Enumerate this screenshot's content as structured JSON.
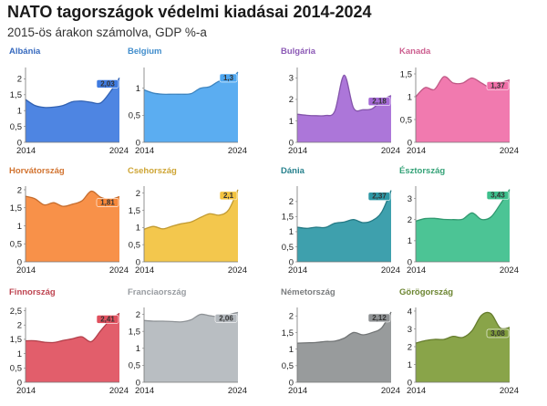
{
  "title": "NATO tagországok védelmi kiadásai 2014-2024",
  "subtitle": "2015-ös árakon számolva, GDP %-a",
  "chart_data": [
    {
      "type": "area",
      "title": "Albánia",
      "color": "#3f7be0",
      "x": [
        2014,
        2015,
        2016,
        2017,
        2018,
        2019,
        2020,
        2021,
        2022,
        2023,
        2024
      ],
      "values": [
        1.35,
        1.16,
        1.1,
        1.11,
        1.16,
        1.28,
        1.3,
        1.26,
        1.24,
        1.58,
        2.03
      ],
      "ylim": [
        0,
        2.3
      ],
      "yticks": [
        0,
        0.5,
        1,
        1.5,
        2
      ],
      "ytick_labels": [
        "0",
        "0,5",
        "1",
        "1,5",
        "2"
      ],
      "xtick_labels": [
        "2014",
        "2024"
      ],
      "last_label": "2,03"
    },
    {
      "type": "area",
      "title": "Belgium",
      "color": "#4da6f0",
      "x": [
        2014,
        2015,
        2016,
        2017,
        2018,
        2019,
        2020,
        2021,
        2022,
        2023,
        2024
      ],
      "values": [
        0.97,
        0.91,
        0.89,
        0.89,
        0.89,
        0.9,
        1.0,
        1.03,
        1.13,
        1.14,
        1.3
      ],
      "ylim": [
        0,
        1.35
      ],
      "yticks": [
        0,
        0.5,
        1
      ],
      "ytick_labels": [
        "0",
        "0,5",
        "1"
      ],
      "xtick_labels": [
        "2014",
        "2024"
      ],
      "last_label": "1,3"
    },
    {
      "type": "area",
      "title": "Bulgária",
      "color": "#a56ad6",
      "x": [
        2014,
        2015,
        2016,
        2017,
        2018,
        2019,
        2020,
        2021,
        2022,
        2023,
        2024
      ],
      "values": [
        1.31,
        1.26,
        1.24,
        1.25,
        1.45,
        3.13,
        1.6,
        1.52,
        1.57,
        1.96,
        2.18
      ],
      "ylim": [
        0,
        3.4
      ],
      "yticks": [
        0,
        1,
        2,
        3
      ],
      "ytick_labels": [
        "0",
        "1",
        "2",
        "3"
      ],
      "xtick_labels": [
        "2014",
        "2024"
      ],
      "last_label": "2,18"
    },
    {
      "type": "area",
      "title": "Kanada",
      "color": "#f06fa8",
      "x": [
        2014,
        2015,
        2016,
        2017,
        2018,
        2019,
        2020,
        2021,
        2022,
        2023,
        2024
      ],
      "values": [
        1.0,
        1.2,
        1.16,
        1.44,
        1.3,
        1.3,
        1.41,
        1.3,
        1.2,
        1.3,
        1.37
      ],
      "ylim": [
        0,
        1.6
      ],
      "yticks": [
        0,
        0.5,
        1,
        1.5
      ],
      "ytick_labels": [
        "0",
        "0,5",
        "1",
        "1,5"
      ],
      "xtick_labels": [
        "2014",
        "2024"
      ],
      "last_label": "1,37"
    },
    {
      "type": "area",
      "title": "Horvátország",
      "color": "#f7883a",
      "x": [
        2014,
        2015,
        2016,
        2017,
        2018,
        2019,
        2020,
        2021,
        2022,
        2023,
        2024
      ],
      "values": [
        1.82,
        1.75,
        1.58,
        1.64,
        1.54,
        1.6,
        1.69,
        1.96,
        1.79,
        1.73,
        1.81
      ],
      "ylim": [
        0,
        2.05
      ],
      "yticks": [
        0,
        0.5,
        1,
        1.5,
        2
      ],
      "ytick_labels": [
        "0",
        "0,5",
        "1",
        "1,5",
        "2"
      ],
      "xtick_labels": [
        "2014",
        "2024"
      ],
      "last_label": "1,81"
    },
    {
      "type": "area",
      "title": "Csehország",
      "color": "#f2c23e",
      "x": [
        2014,
        2015,
        2016,
        2017,
        2018,
        2019,
        2020,
        2021,
        2022,
        2023,
        2024
      ],
      "values": [
        0.95,
        1.03,
        0.96,
        1.04,
        1.11,
        1.16,
        1.29,
        1.4,
        1.36,
        1.51,
        2.1
      ],
      "ylim": [
        0,
        2.15
      ],
      "yticks": [
        0,
        0.5,
        1,
        1.5,
        2
      ],
      "ytick_labels": [
        "0",
        "0,5",
        "1",
        "1,5",
        "2"
      ],
      "xtick_labels": [
        "2014",
        "2024"
      ],
      "last_label": "2,1"
    },
    {
      "type": "area",
      "title": "Dánia",
      "color": "#2e98a6",
      "x": [
        2014,
        2015,
        2016,
        2017,
        2018,
        2019,
        2020,
        2021,
        2022,
        2023,
        2024
      ],
      "values": [
        1.15,
        1.11,
        1.15,
        1.14,
        1.28,
        1.32,
        1.4,
        1.3,
        1.37,
        1.65,
        2.37
      ],
      "ylim": [
        0,
        2.45
      ],
      "yticks": [
        0,
        0.5,
        1,
        1.5,
        2
      ],
      "ytick_labels": [
        "0",
        "0,5",
        "1",
        "1,5",
        "2"
      ],
      "xtick_labels": [
        "2014",
        "2024"
      ],
      "last_label": "2,37"
    },
    {
      "type": "area",
      "title": "Észtország",
      "color": "#3dbf8c",
      "x": [
        2014,
        2015,
        2016,
        2017,
        2018,
        2019,
        2020,
        2021,
        2022,
        2023,
        2024
      ],
      "values": [
        1.93,
        2.05,
        2.06,
        2.01,
        2.0,
        2.02,
        2.32,
        2.01,
        2.12,
        2.73,
        3.43
      ],
      "ylim": [
        0,
        3.5
      ],
      "yticks": [
        0,
        1,
        2,
        3
      ],
      "ytick_labels": [
        "0",
        "1",
        "2",
        "3"
      ],
      "xtick_labels": [
        "2014",
        "2024"
      ],
      "last_label": "3,43"
    },
    {
      "type": "area",
      "title": "Finnország",
      "color": "#e0505e",
      "x": [
        2014,
        2015,
        2016,
        2017,
        2018,
        2019,
        2020,
        2021,
        2022,
        2023,
        2024
      ],
      "values": [
        1.45,
        1.45,
        1.4,
        1.39,
        1.46,
        1.52,
        1.59,
        1.42,
        1.8,
        2.17,
        2.41
      ],
      "ylim": [
        0,
        2.55
      ],
      "yticks": [
        0,
        0.5,
        1,
        1.5,
        2,
        2.5
      ],
      "ytick_labels": [
        "0",
        "0,5",
        "1",
        "1,5",
        "2",
        "2,5"
      ],
      "xtick_labels": [
        "2014",
        "2024"
      ],
      "last_label": "2,41"
    },
    {
      "type": "area",
      "title": "Franciaország",
      "color": "#b3b8bd",
      "x": [
        2014,
        2015,
        2016,
        2017,
        2018,
        2019,
        2020,
        2021,
        2022,
        2023,
        2024
      ],
      "values": [
        1.82,
        1.8,
        1.8,
        1.79,
        1.78,
        1.84,
        2.0,
        1.96,
        1.93,
        1.99,
        2.06
      ],
      "ylim": [
        0,
        2.15
      ],
      "yticks": [
        0,
        0.5,
        1,
        1.5,
        2
      ],
      "ytick_labels": [
        "0",
        "0,5",
        "1",
        "1,5",
        "2"
      ],
      "xtick_labels": [
        "2014",
        "2024"
      ],
      "last_label": "2,06"
    },
    {
      "type": "area",
      "title": "Németország",
      "color": "#8f9294",
      "x": [
        2014,
        2015,
        2016,
        2017,
        2018,
        2019,
        2020,
        2021,
        2022,
        2023,
        2024
      ],
      "values": [
        1.18,
        1.19,
        1.2,
        1.23,
        1.24,
        1.33,
        1.5,
        1.43,
        1.5,
        1.64,
        2.12
      ],
      "ylim": [
        0,
        2.2
      ],
      "yticks": [
        0,
        0.5,
        1,
        1.5,
        2
      ],
      "ytick_labels": [
        "0",
        "0,5",
        "1",
        "1,5",
        "2"
      ],
      "xtick_labels": [
        "2014",
        "2024"
      ],
      "last_label": "2,12"
    },
    {
      "type": "area",
      "title": "Görögország",
      "color": "#7f9c3a",
      "x": [
        2014,
        2015,
        2016,
        2017,
        2018,
        2019,
        2020,
        2021,
        2022,
        2023,
        2024
      ],
      "values": [
        2.2,
        2.34,
        2.41,
        2.41,
        2.58,
        2.52,
        2.9,
        3.76,
        3.86,
        3.05,
        3.08
      ],
      "ylim": [
        0,
        4.1
      ],
      "yticks": [
        0,
        1,
        2,
        3,
        4
      ],
      "ytick_labels": [
        "0",
        "1",
        "2",
        "3",
        "4"
      ],
      "xtick_labels": [
        "2014",
        "2024"
      ],
      "last_label": "3,08"
    }
  ]
}
